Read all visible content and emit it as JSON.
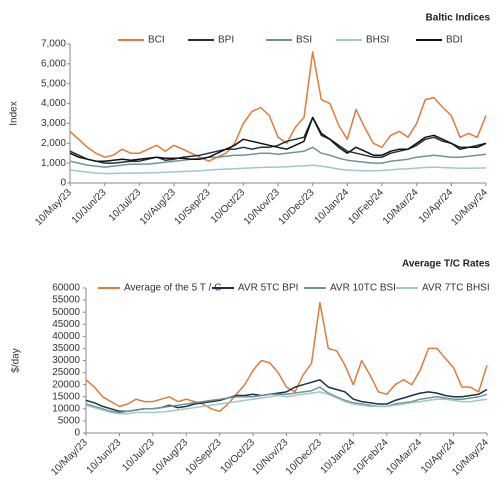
{
  "chart_data": [
    {
      "type": "line",
      "title": "Baltic Indices",
      "y_label": "Index",
      "categories": [
        "10/May/23",
        null,
        null,
        null,
        "10/Jun/23",
        null,
        null,
        null,
        "10/Jul/23",
        null,
        null,
        null,
        "10/Aug/23",
        null,
        null,
        null,
        "10/Sep/23",
        null,
        null,
        null,
        "10/Oct/23",
        null,
        null,
        null,
        "10/Nov/23",
        null,
        null,
        null,
        "10/Dec/23",
        null,
        null,
        null,
        "10/Jan/24",
        null,
        null,
        null,
        "10/Feb/24",
        null,
        null,
        null,
        "10/Mar/24",
        null,
        null,
        null,
        "10/Apr/24",
        null,
        null,
        null,
        "10/May/24"
      ],
      "ylim": [
        0,
        7000
      ],
      "yticks": [
        0,
        {
          "value": 1000,
          "label": "1,000"
        },
        {
          "value": 2000,
          "label": "2,000"
        },
        {
          "value": 3000,
          "label": "3,000"
        },
        {
          "value": 4000,
          "label": "4,000"
        },
        {
          "value": 5000,
          "label": "5,000"
        },
        {
          "value": 6000,
          "label": "6,000"
        },
        {
          "value": 7000,
          "label": "7,000"
        }
      ],
      "grid": false,
      "legend": "top",
      "series": [
        {
          "name": "BCI",
          "color": "#e07b39",
          "values": [
            2600,
            2200,
            1800,
            1500,
            1300,
            1400,
            1700,
            1500,
            1500,
            1700,
            1900,
            1600,
            1900,
            1700,
            1500,
            1300,
            1100,
            1300,
            1500,
            2000,
            3000,
            3600,
            3800,
            3400,
            2300,
            2000,
            2800,
            3300,
            6600,
            4200,
            4000,
            2900,
            2200,
            3700,
            2800,
            2000,
            1800,
            2400,
            2600,
            2300,
            3000,
            4200,
            4300,
            3800,
            3400,
            2300,
            2500,
            2300,
            3400
          ]
        },
        {
          "name": "BPI",
          "color": "#1f3044",
          "values": [
            1600,
            1400,
            1200,
            1100,
            1000,
            1000,
            1050,
            1100,
            1100,
            1200,
            1300,
            1150,
            1200,
            1300,
            1350,
            1400,
            1500,
            1600,
            1700,
            1700,
            1800,
            1700,
            1800,
            1800,
            1900,
            2100,
            2200,
            2300,
            3300,
            2400,
            2200,
            1900,
            1600,
            1500,
            1400,
            1300,
            1300,
            1500,
            1600,
            1700,
            1900,
            2200,
            2300,
            2100,
            2000,
            1800,
            1800,
            1900,
            2000
          ]
        },
        {
          "name": "BSI",
          "color": "#6e9494",
          "values": [
            1100,
            1000,
            900,
            850,
            800,
            850,
            900,
            950,
            950,
            950,
            1000,
            1050,
            1100,
            1150,
            1200,
            1250,
            1300,
            1300,
            1350,
            1400,
            1400,
            1450,
            1500,
            1500,
            1450,
            1500,
            1550,
            1600,
            1800,
            1500,
            1400,
            1250,
            1150,
            1100,
            1050,
            1000,
            1000,
            1100,
            1150,
            1200,
            1300,
            1350,
            1400,
            1350,
            1300,
            1300,
            1350,
            1400,
            1450
          ]
        },
        {
          "name": "BHSI",
          "color": "#9fc8c8",
          "values": [
            650,
            600,
            550,
            500,
            480,
            480,
            500,
            500,
            500,
            510,
            520,
            540,
            560,
            580,
            600,
            620,
            650,
            680,
            700,
            720,
            740,
            760,
            780,
            800,
            800,
            820,
            840,
            860,
            900,
            850,
            780,
            700,
            650,
            630,
            620,
            620,
            630,
            660,
            700,
            720,
            750,
            780,
            800,
            780,
            760,
            740,
            740,
            750,
            760
          ]
        },
        {
          "name": "BDI",
          "color": "#111111",
          "values": [
            1500,
            1300,
            1200,
            1100,
            1100,
            1150,
            1200,
            1150,
            1200,
            1250,
            1300,
            1250,
            1250,
            1250,
            1200,
            1200,
            1300,
            1500,
            1700,
            1900,
            2200,
            2100,
            2000,
            1900,
            1800,
            1700,
            1900,
            2100,
            3300,
            2500,
            2200,
            1800,
            1500,
            1800,
            1600,
            1400,
            1400,
            1600,
            1700,
            1700,
            2000,
            2300,
            2400,
            2200,
            2000,
            1700,
            1800,
            1800,
            2000
          ]
        }
      ]
    },
    {
      "type": "line",
      "title": "Average T/C Rates",
      "y_label": "$/day",
      "categories": [
        "10/May/23",
        null,
        null,
        null,
        "10/Jun/23",
        null,
        null,
        null,
        "10/Jul/23",
        null,
        null,
        null,
        "10/Aug/23",
        null,
        null,
        null,
        "10/Sep/23",
        null,
        null,
        null,
        "10/Oct/23",
        null,
        null,
        null,
        "10/Nov/23",
        null,
        null,
        null,
        "10/Dec/23",
        null,
        null,
        null,
        "10/Jan/24",
        null,
        null,
        null,
        "10/Feb/24",
        null,
        null,
        null,
        "10/Mar/24",
        null,
        null,
        null,
        "10/Apr/24",
        null,
        null,
        null,
        "10/May/24"
      ],
      "ylim": [
        0,
        60000
      ],
      "yticks": [
        0,
        5000,
        10000,
        15000,
        20000,
        25000,
        30000,
        35000,
        40000,
        45000,
        50000,
        55000,
        60000
      ],
      "grid": false,
      "legend": "top",
      "series": [
        {
          "name": "Average of the 5 T / C",
          "color": "#e07b39",
          "values": [
            22000,
            19000,
            15000,
            13000,
            11000,
            12000,
            14000,
            13000,
            13000,
            14000,
            15000,
            13000,
            14000,
            13000,
            12000,
            10000,
            9000,
            12000,
            16000,
            20000,
            26000,
            30000,
            29000,
            25000,
            19000,
            17000,
            24000,
            29000,
            54000,
            35000,
            34000,
            28000,
            20000,
            30000,
            24000,
            17000,
            16000,
            20000,
            22000,
            20000,
            26000,
            35000,
            35000,
            31000,
            27000,
            19000,
            19000,
            17000,
            28000
          ]
        },
        {
          "name": "AVR 5TC BPI",
          "color": "#1f3044",
          "values": [
            13500,
            12500,
            11000,
            10000,
            9000,
            9000,
            9500,
            10000,
            10000,
            10500,
            11500,
            10500,
            11000,
            12000,
            12500,
            13000,
            13500,
            14500,
            15500,
            15500,
            16000,
            15500,
            16000,
            16500,
            17000,
            19000,
            20000,
            21000,
            22000,
            19000,
            18000,
            17000,
            14000,
            13000,
            12500,
            12000,
            12000,
            13500,
            14500,
            15500,
            16500,
            17000,
            16500,
            15500,
            15000,
            15000,
            15500,
            16000,
            18000
          ]
        },
        {
          "name": "AVR 10TC BSI",
          "color": "#6e9494",
          "values": [
            12000,
            11000,
            10000,
            9000,
            8500,
            9000,
            9500,
            10000,
            10000,
            10500,
            11000,
            11500,
            12000,
            12500,
            13000,
            13500,
            14000,
            14500,
            15000,
            15000,
            15000,
            15500,
            16000,
            16000,
            16000,
            16500,
            17000,
            17500,
            19000,
            16500,
            15000,
            13500,
            12500,
            12000,
            11500,
            11000,
            11000,
            12000,
            12500,
            13000,
            14000,
            14500,
            15000,
            14500,
            14000,
            14000,
            14500,
            15000,
            16000
          ]
        },
        {
          "name": "AVR 7TC BHSI",
          "color": "#9fc8c8",
          "values": [
            11500,
            10500,
            9500,
            8500,
            8000,
            8000,
            8500,
            8500,
            8500,
            8700,
            9000,
            9500,
            10000,
            10500,
            11000,
            11500,
            12000,
            12500,
            13000,
            13500,
            14000,
            14500,
            15000,
            15500,
            15000,
            15500,
            16000,
            16500,
            17000,
            16000,
            14500,
            13000,
            12000,
            11500,
            11000,
            11000,
            11000,
            11500,
            12000,
            12500,
            13000,
            13500,
            14000,
            14000,
            13500,
            13000,
            13000,
            13500,
            14000
          ]
        }
      ]
    }
  ]
}
